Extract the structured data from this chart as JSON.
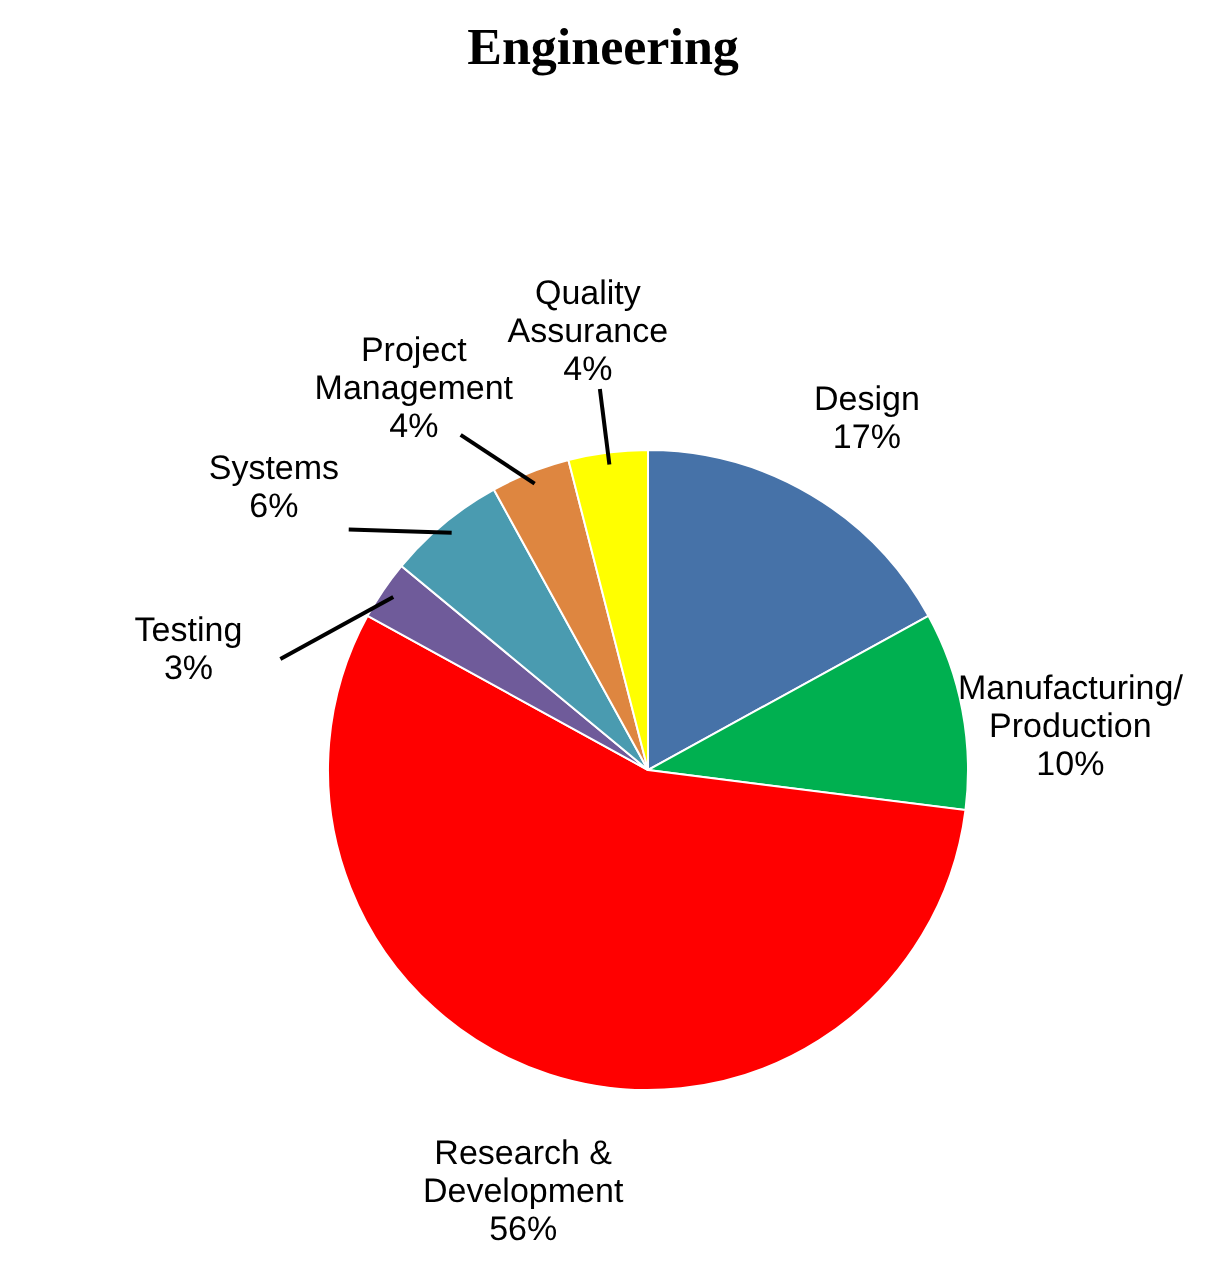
{
  "chart_data": {
    "type": "pie",
    "title": "Engineering",
    "categories": [
      "Design",
      "Manufacturing/ Production",
      "Research & Development",
      "Testing",
      "Systems",
      "Project Management",
      "Quality Assurance"
    ],
    "values": [
      17,
      10,
      56,
      3,
      6,
      4,
      4
    ],
    "value_labels": [
      "17%",
      "10%",
      "56%",
      "3%",
      "6%",
      "4%",
      "4%"
    ],
    "colors": [
      "#4672a8",
      "#00b050",
      "#ff0000",
      "#6f5b9a",
      "#4a9bb0",
      "#de8640",
      "#ffff00"
    ]
  }
}
